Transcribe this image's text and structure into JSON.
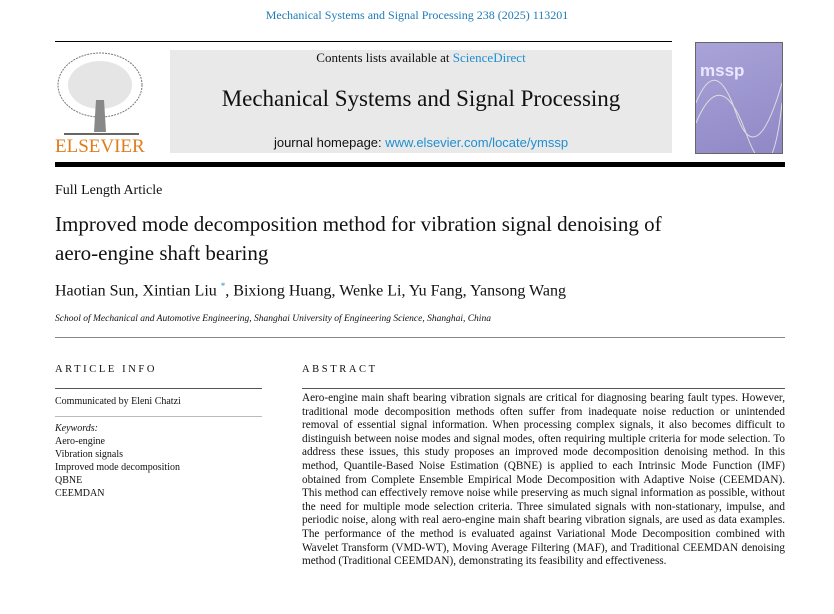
{
  "header": {
    "citation": "Mechanical Systems and Signal Processing 238 (2025) 113201",
    "contents_prefix": "Contents lists available at ",
    "contents_link": "ScienceDirect",
    "journal_title": "Mechanical Systems and Signal Processing",
    "homepage_prefix": "journal homepage: ",
    "homepage_link": "www.elsevier.com/locate/ymssp",
    "publisher_logo_text": "ELSEVIER",
    "cover_text": "mssp"
  },
  "article": {
    "type": "Full Length Article",
    "title": "Improved mode decomposition method for vibration signal denoising of aero-engine shaft bearing",
    "authors": [
      "Haotian Sun",
      "Xintian Liu",
      "Bixiong Huang",
      "Wenke Li",
      "Yu Fang",
      "Yansong Wang"
    ],
    "corresponding_mark": "*",
    "affiliation": "School of Mechanical and Automotive Engineering, Shanghai University of Engineering Science, Shanghai, China"
  },
  "info": {
    "heading": "ARTICLE INFO",
    "communicated": "Communicated by Eleni Chatzi",
    "keywords_label": "Keywords:",
    "keywords": [
      "Aero-engine",
      "Vibration signals",
      "Improved mode decomposition",
      "QBNE",
      "CEEMDAN"
    ]
  },
  "abstract": {
    "heading": "ABSTRACT",
    "text": "Aero-engine main shaft bearing vibration signals are critical for diagnosing bearing fault types. However, traditional mode decomposition methods often suffer from inadequate noise reduction or unintended removal of essential signal information. When processing complex signals, it also becomes difficult to distinguish between noise modes and signal modes, often requiring multiple criteria for mode selection. To address these issues, this study proposes an improved mode decomposition denoising method. In this method, Quantile-Based Noise Estimation (QBNE) is applied to each Intrinsic Mode Function (IMF) obtained from Complete Ensemble Empirical Mode Decomposition with Adaptive Noise (CEEMDAN). This method can effectively remove noise while preserving as much signal information as possible, without the need for multiple mode selection criteria. Three simulated signals with non-stationary, impulse, and periodic noise, along with real aero-engine main shaft bearing vibration signals, are used as data examples. The performance of the method is evaluated against Variational Mode Decomposition combined with Wavelet Transform (VMD-WT), Moving Average Filtering (MAF), and Traditional CEEMDAN denoising method (Traditional CEEMDAN), demonstrating its feasibility and effectiveness."
  }
}
